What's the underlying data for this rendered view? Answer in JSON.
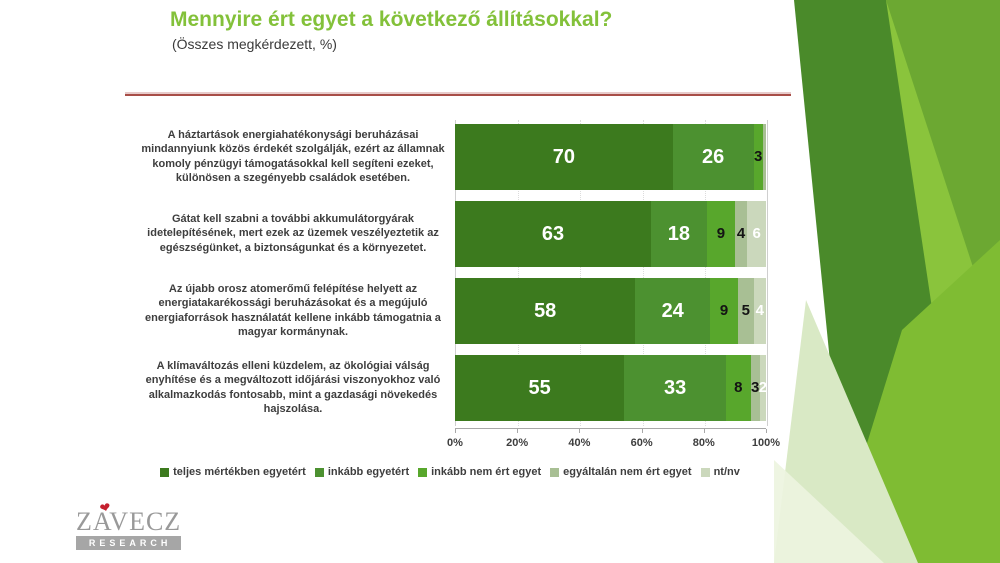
{
  "slide": {
    "theme": {
      "accent_green": "#83C13A",
      "divider_red": "#A84E48",
      "text_dark": "#3E3E3E"
    }
  },
  "chart_data": {
    "type": "bar",
    "stacked": true,
    "orientation": "horizontal",
    "title": "Mennyire ért egyet a következő állításokkal?",
    "subtitle": "(Összes megkérdezett, %)",
    "xlim": [
      0,
      100
    ],
    "xticks": [
      "0%",
      "20%",
      "40%",
      "60%",
      "80%",
      "100%"
    ],
    "grid": "dotted-vertical",
    "legend_position": "bottom",
    "label_min_value_to_show": 2,
    "categories": [
      "A háztartások energiahatékonysági beruházásai mindannyiunk közös érdekét szolgálják, ezért az államnak komoly pénzügyi támogatásokkal kell segíteni ezeket, különösen a szegényebb családok esetében.",
      "Gátat kell szabni a további akkumulátorgyárak idetelepítésének, mert ezek az üzemek veszélyeztetik az egészségünket, a biztonságunkat és a környezetet.",
      "Az újabb orosz atomerőmű felépítése helyett az energiatakarékossági beruházásokat és a megújuló energiaforrások használatát kellene inkább támogatnia a magyar kormánynak.",
      "A klímaváltozás elleni küzdelem, az ökológiai válság enyhítése és a megváltozott időjárási viszonyokhoz való alkalmazkodás fontosabb, mint a gazdasági növekedés hajszolása."
    ],
    "series": [
      {
        "name": "teljes mértékben egyetért",
        "color": "#3C7A1E",
        "text_color": "#FFFFFF",
        "values": [
          70,
          63,
          58,
          55
        ]
      },
      {
        "name": "inkább egyetért",
        "color": "#4C9130",
        "text_color": "#FFFFFF",
        "values": [
          26,
          18,
          24,
          33
        ]
      },
      {
        "name": "inkább nem ért egyet",
        "color": "#58A72C",
        "text_color": "#141414",
        "values": [
          3,
          9,
          9,
          8
        ]
      },
      {
        "name": "egyáltalán nem ért egyet",
        "color": "#A8BF94",
        "text_color": "#141414",
        "values": [
          1,
          4,
          5,
          3
        ]
      },
      {
        "name": "nt/nv",
        "color": "#CBD8BC",
        "text_color": "#FFFFFF",
        "values": [
          0,
          6,
          4,
          2
        ]
      }
    ]
  },
  "logo": {
    "wordmark": "ZAVECZ",
    "sub": "RESEARCH"
  }
}
